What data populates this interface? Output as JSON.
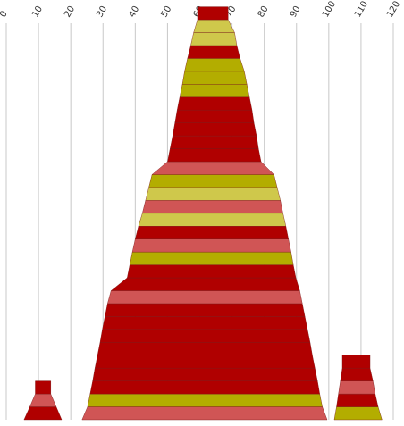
{
  "chart_data": {
    "type": "stacked-trapezoid-band",
    "x_axis": {
      "ticks": [
        "0",
        "10",
        "20",
        "30",
        "40",
        "50",
        "60",
        "70",
        "80",
        "90",
        "100",
        "110",
        "120"
      ],
      "range": [
        0,
        120
      ],
      "grid": true,
      "tick_position": "top"
    },
    "palette": {
      "dark_red": "#b00000",
      "salmon": "#d05555",
      "olive": "#b3ad00",
      "khaki": "#cfc84b"
    },
    "stacks": [
      {
        "name": "",
        "baseline_row": 0,
        "bands": [
          {
            "left": 23.5,
            "right": 99.5,
            "color": "salmon"
          },
          {
            "left": 25.2,
            "right": 98.0,
            "color": "olive"
          },
          {
            "left": 26.0,
            "right": 97.2,
            "color": "dark_red"
          },
          {
            "left": 26.8,
            "right": 96.5,
            "color": "dark_red"
          },
          {
            "left": 27.5,
            "right": 95.7,
            "color": "dark_red"
          },
          {
            "left": 28.3,
            "right": 94.9,
            "color": "dark_red"
          },
          {
            "left": 29.1,
            "right": 94.2,
            "color": "dark_red"
          },
          {
            "left": 29.8,
            "right": 93.4,
            "color": "dark_red"
          },
          {
            "left": 30.6,
            "right": 92.6,
            "color": "dark_red"
          },
          {
            "left": 31.4,
            "right": 91.8,
            "color": "salmon"
          },
          {
            "left": 32.5,
            "right": 91.0,
            "color": "dark_red"
          },
          {
            "left": 37.5,
            "right": 89.8,
            "color": "dark_red"
          },
          {
            "left": 38.3,
            "right": 89.0,
            "color": "olive"
          },
          {
            "left": 39.1,
            "right": 88.3,
            "color": "salmon"
          },
          {
            "left": 40.0,
            "right": 87.5,
            "color": "dark_red"
          },
          {
            "left": 41.0,
            "right": 86.7,
            "color": "khaki"
          },
          {
            "left": 42.2,
            "right": 85.8,
            "color": "salmon"
          },
          {
            "left": 43.2,
            "right": 85.0,
            "color": "khaki"
          },
          {
            "left": 44.2,
            "right": 84.0,
            "color": "olive"
          },
          {
            "left": 45.2,
            "right": 83.0,
            "color": "salmon"
          },
          {
            "left": 50.0,
            "right": 79.0,
            "color": "dark_red"
          },
          {
            "left": 50.8,
            "right": 78.2,
            "color": "dark_red"
          },
          {
            "left": 51.6,
            "right": 77.6,
            "color": "dark_red"
          },
          {
            "left": 52.3,
            "right": 76.8,
            "color": "dark_red"
          },
          {
            "left": 53.0,
            "right": 76.2,
            "color": "dark_red"
          },
          {
            "left": 53.8,
            "right": 75.4,
            "color": "olive"
          },
          {
            "left": 54.6,
            "right": 74.6,
            "color": "olive"
          },
          {
            "left": 55.3,
            "right": 73.8,
            "color": "olive"
          },
          {
            "left": 56.2,
            "right": 72.5,
            "color": "dark_red"
          },
          {
            "left": 57.2,
            "right": 71.5,
            "color": "khaki"
          },
          {
            "left": 58.1,
            "right": 70.8,
            "color": "khaki"
          },
          {
            "left": 59.3,
            "right": 68.8,
            "color": "dark_red"
          }
        ]
      },
      {
        "name": "",
        "baseline_row": 0,
        "bands": [
          {
            "left": 5.5,
            "right": 17.2,
            "color": "dark_red"
          },
          {
            "left": 7.3,
            "right": 15.5,
            "color": "salmon"
          },
          {
            "left": 9.0,
            "right": 13.8,
            "color": "dark_red"
          }
        ]
      },
      {
        "name": "",
        "baseline_row": 0,
        "bands": [
          {
            "left": 101.7,
            "right": 116.5,
            "color": "olive"
          },
          {
            "left": 102.4,
            "right": 115.3,
            "color": "dark_red"
          },
          {
            "left": 103.0,
            "right": 114.4,
            "color": "salmon"
          },
          {
            "left": 103.6,
            "right": 113.7,
            "color": "dark_red"
          },
          {
            "left": 104.2,
            "right": 112.8,
            "color": "dark_red"
          }
        ]
      }
    ]
  }
}
